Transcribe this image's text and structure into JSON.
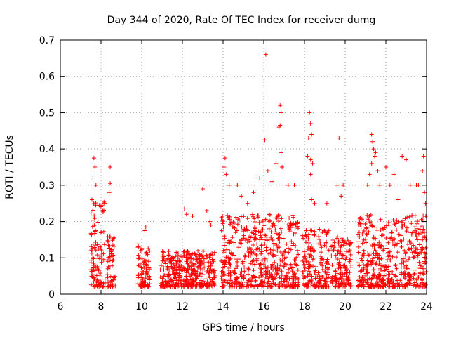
{
  "chart_data": {
    "type": "scatter",
    "title": "Day 344 of 2020, Rate Of TEC Index for receiver dumg",
    "xlabel": "GPS time / hours",
    "ylabel": "ROTI / TECUs",
    "xlim": [
      6,
      24
    ],
    "ylim": [
      0,
      0.7
    ],
    "xticks": [
      "6",
      "8",
      "10",
      "12",
      "14",
      "16",
      "18",
      "20",
      "22",
      "24"
    ],
    "yticks": [
      "0",
      "0.1",
      "0.2",
      "0.3",
      "0.4",
      "0.5",
      "0.6",
      "0.7"
    ],
    "grid": true,
    "marker": "+",
    "color": "#ff0000",
    "series": [
      {
        "name": "ROTI",
        "clusters": [
          {
            "x": [
              7.5,
              8.2
            ],
            "ymax": 0.26
          },
          {
            "x": [
              8.3,
              8.7
            ],
            "ymax": 0.16
          },
          {
            "x": [
              9.8,
              10.4
            ],
            "ymax": 0.14
          },
          {
            "x": [
              10.9,
              13.6
            ],
            "ymax": 0.12
          },
          {
            "x": [
              13.9,
              17.7
            ],
            "ymax": 0.22
          },
          {
            "x": [
              17.9,
              19.2
            ],
            "ymax": 0.18
          },
          {
            "x": [
              19.3,
              20.3
            ],
            "ymax": 0.16
          },
          {
            "x": [
              20.6,
              24.0
            ],
            "ymax": 0.22
          }
        ],
        "peaks": [
          [
            7.65,
            0.375
          ],
          [
            7.7,
            0.35
          ],
          [
            7.6,
            0.32
          ],
          [
            7.55,
            0.26
          ],
          [
            7.75,
            0.3
          ],
          [
            8.05,
            0.245
          ],
          [
            8.45,
            0.35
          ],
          [
            8.4,
            0.28
          ],
          [
            8.45,
            0.305
          ],
          [
            10.2,
            0.185
          ],
          [
            10.15,
            0.175
          ],
          [
            12.1,
            0.235
          ],
          [
            12.2,
            0.22
          ],
          [
            12.5,
            0.215
          ],
          [
            13.0,
            0.29
          ],
          [
            13.2,
            0.23
          ],
          [
            13.35,
            0.2
          ],
          [
            13.4,
            0.19
          ],
          [
            14.1,
            0.375
          ],
          [
            14.05,
            0.35
          ],
          [
            14.15,
            0.33
          ],
          [
            14.3,
            0.3
          ],
          [
            14.7,
            0.3
          ],
          [
            14.9,
            0.27
          ],
          [
            15.2,
            0.25
          ],
          [
            15.5,
            0.28
          ],
          [
            15.8,
            0.32
          ],
          [
            16.1,
            0.66
          ],
          [
            16.05,
            0.425
          ],
          [
            16.2,
            0.34
          ],
          [
            16.4,
            0.31
          ],
          [
            16.8,
            0.52
          ],
          [
            16.85,
            0.5
          ],
          [
            16.8,
            0.465
          ],
          [
            16.75,
            0.46
          ],
          [
            16.85,
            0.39
          ],
          [
            16.6,
            0.36
          ],
          [
            16.9,
            0.35
          ],
          [
            17.2,
            0.3
          ],
          [
            17.5,
            0.3
          ],
          [
            18.25,
            0.5
          ],
          [
            18.3,
            0.47
          ],
          [
            18.35,
            0.44
          ],
          [
            18.2,
            0.43
          ],
          [
            18.15,
            0.38
          ],
          [
            18.3,
            0.37
          ],
          [
            18.4,
            0.36
          ],
          [
            18.3,
            0.33
          ],
          [
            18.35,
            0.26
          ],
          [
            18.5,
            0.25
          ],
          [
            19.1,
            0.25
          ],
          [
            19.7,
            0.43
          ],
          [
            19.6,
            0.3
          ],
          [
            19.9,
            0.3
          ],
          [
            19.8,
            0.27
          ],
          [
            21.3,
            0.44
          ],
          [
            21.35,
            0.42
          ],
          [
            21.4,
            0.4
          ],
          [
            21.5,
            0.39
          ],
          [
            21.45,
            0.38
          ],
          [
            21.3,
            0.36
          ],
          [
            21.6,
            0.34
          ],
          [
            21.7,
            0.3
          ],
          [
            21.2,
            0.33
          ],
          [
            21.1,
            0.3
          ],
          [
            22.0,
            0.35
          ],
          [
            22.2,
            0.3
          ],
          [
            22.4,
            0.33
          ],
          [
            22.6,
            0.26
          ],
          [
            22.8,
            0.38
          ],
          [
            23.0,
            0.37
          ],
          [
            23.2,
            0.3
          ],
          [
            23.5,
            0.3
          ],
          [
            23.6,
            0.3
          ],
          [
            23.8,
            0.34
          ],
          [
            23.85,
            0.38
          ],
          [
            23.9,
            0.28
          ],
          [
            23.95,
            0.25
          ]
        ]
      }
    ]
  }
}
